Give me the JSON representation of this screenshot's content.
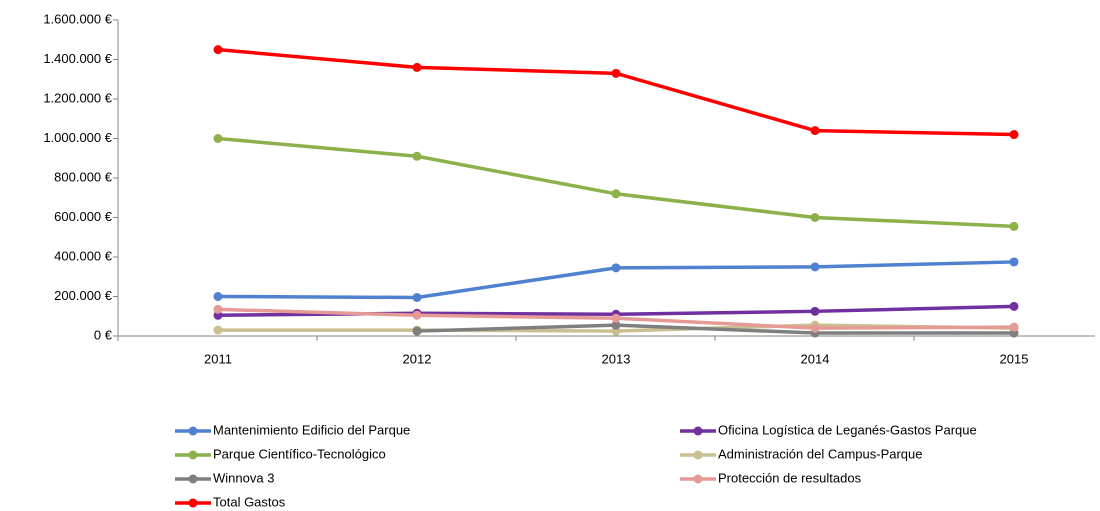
{
  "chart_data": {
    "type": "line",
    "categories": [
      "2011",
      "2012",
      "2013",
      "2014",
      "2015"
    ],
    "series": [
      {
        "name": "Mantenimiento Edificio del Parque",
        "color": "#4f81d0",
        "values": [
          200000,
          195000,
          345000,
          350000,
          375000
        ]
      },
      {
        "name": "Oficina Logística de Leganés-Gastos Parque",
        "color": "#7030a0",
        "values": [
          105000,
          115000,
          110000,
          125000,
          150000
        ]
      },
      {
        "name": "Parque Científico-Tecnológico",
        "color": "#8cb04a",
        "values": [
          1000000,
          910000,
          720000,
          600000,
          555000
        ]
      },
      {
        "name": "Administración del Campus-Parque",
        "color": "#c9bf90",
        "values": [
          30000,
          30000,
          25000,
          55000,
          40000
        ]
      },
      {
        "name": "Winnova 3",
        "color": "#7f7f7f",
        "values": [
          null,
          25000,
          55000,
          15000,
          15000
        ]
      },
      {
        "name": "Protección de resultados",
        "color": "#e69a96",
        "values": [
          135000,
          105000,
          90000,
          40000,
          45000
        ]
      },
      {
        "name": "Total Gastos",
        "color": "#ff0000",
        "values": [
          1450000,
          1360000,
          1330000,
          1040000,
          1020000
        ]
      }
    ],
    "ylim": [
      0,
      1600000
    ],
    "yticks": [
      {
        "value": 0,
        "label": "0 €"
      },
      {
        "value": 200000,
        "label": "200.000 €"
      },
      {
        "value": 400000,
        "label": "400.000 €"
      },
      {
        "value": 600000,
        "label": "600.000 €"
      },
      {
        "value": 800000,
        "label": "800.000 €"
      },
      {
        "value": 1000000,
        "label": "1.000.000 €"
      },
      {
        "value": 1200000,
        "label": "1.200.000 €"
      },
      {
        "value": 1400000,
        "label": "1.400.000 €"
      },
      {
        "value": 1600000,
        "label": "1.600.000 €"
      }
    ],
    "grid": false
  }
}
